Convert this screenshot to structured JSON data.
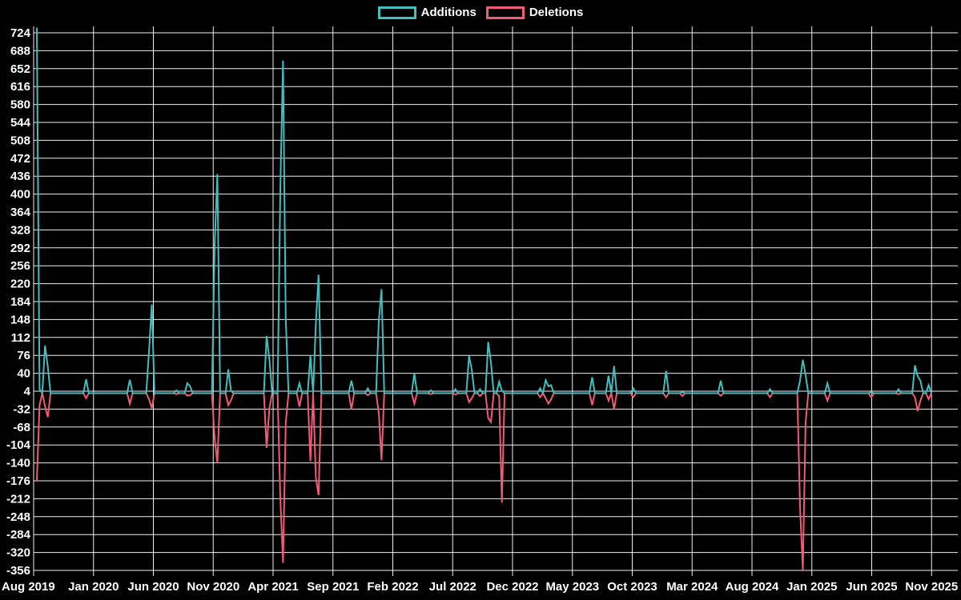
{
  "page": {
    "background": "#000000",
    "text_color": "#ffffff",
    "grid_color": "#f0f0f0"
  },
  "legend": {
    "items": [
      {
        "label": "Additions",
        "color": "#45bdbe"
      },
      {
        "label": "Deletions",
        "color": "#f25b75"
      }
    ]
  },
  "chart_data": {
    "type": "line",
    "title": "",
    "xlabel": "",
    "ylabel": "",
    "legend_position": "top-center",
    "grid": true,
    "x_unit": "week",
    "total_weeks": 328,
    "baseline_value": 0,
    "ylim": [
      -356,
      724
    ],
    "y_ticks": [
      724,
      688,
      652,
      616,
      580,
      544,
      508,
      472,
      436,
      400,
      364,
      328,
      292,
      256,
      220,
      184,
      148,
      112,
      76,
      40,
      4,
      -32,
      -68,
      -104,
      -140,
      -176,
      -212,
      -248,
      -284,
      -320,
      -356
    ],
    "x_tick_labels": [
      "Aug 2019",
      "Jan 2020",
      "Jun 2020",
      "Nov 2020",
      "Apr 2021",
      "Sep 2021",
      "Feb 2022",
      "Jul 2022",
      "Dec 2022",
      "May 2023",
      "Oct 2023",
      "Mar 2024",
      "Aug 2024",
      "Jan 2025",
      "Jun 2025",
      "Nov 2025"
    ],
    "series": [
      {
        "name": "Additions",
        "color": "#45bdbe",
        "default_value": 0,
        "points": [
          [
            0,
            734
          ],
          [
            1,
            8
          ],
          [
            3,
            96
          ],
          [
            4,
            53
          ],
          [
            18,
            28
          ],
          [
            34,
            27
          ],
          [
            41,
            85
          ],
          [
            42,
            178
          ],
          [
            51,
            6
          ],
          [
            55,
            20
          ],
          [
            56,
            14
          ],
          [
            65,
            295
          ],
          [
            66,
            440
          ],
          [
            70,
            48
          ],
          [
            71,
            4
          ],
          [
            84,
            115
          ],
          [
            85,
            68
          ],
          [
            89,
            407
          ],
          [
            90,
            668
          ],
          [
            91,
            150
          ],
          [
            96,
            20
          ],
          [
            100,
            75
          ],
          [
            102,
            140
          ],
          [
            103,
            238
          ],
          [
            115,
            25
          ],
          [
            121,
            10
          ],
          [
            125,
            145
          ],
          [
            126,
            209
          ],
          [
            138,
            40
          ],
          [
            144,
            6
          ],
          [
            153,
            8
          ],
          [
            158,
            75
          ],
          [
            159,
            47
          ],
          [
            162,
            8
          ],
          [
            165,
            103
          ],
          [
            166,
            63
          ],
          [
            169,
            23
          ],
          [
            170,
            5
          ],
          [
            184,
            10
          ],
          [
            186,
            26
          ],
          [
            187,
            14
          ],
          [
            188,
            16
          ],
          [
            203,
            32
          ],
          [
            209,
            35
          ],
          [
            211,
            55
          ],
          [
            218,
            10
          ],
          [
            230,
            45
          ],
          [
            236,
            2
          ],
          [
            250,
            25
          ],
          [
            268,
            8
          ],
          [
            279,
            25
          ],
          [
            280,
            67
          ],
          [
            281,
            37
          ],
          [
            289,
            20
          ],
          [
            305,
            2
          ],
          [
            315,
            8
          ],
          [
            321,
            56
          ],
          [
            322,
            34
          ],
          [
            323,
            25
          ],
          [
            326,
            16
          ]
        ]
      },
      {
        "name": "Deletions",
        "color": "#f25b75",
        "default_value": 0,
        "points": [
          [
            0,
            -176
          ],
          [
            1,
            -24
          ],
          [
            3,
            -26
          ],
          [
            4,
            -48
          ],
          [
            18,
            -10
          ],
          [
            34,
            -21
          ],
          [
            41,
            -12
          ],
          [
            42,
            -30
          ],
          [
            51,
            -2
          ],
          [
            55,
            -5
          ],
          [
            56,
            -4
          ],
          [
            65,
            -90
          ],
          [
            66,
            -140
          ],
          [
            70,
            -24
          ],
          [
            71,
            -14
          ],
          [
            84,
            -110
          ],
          [
            85,
            -30
          ],
          [
            89,
            -210
          ],
          [
            90,
            -341
          ],
          [
            91,
            -60
          ],
          [
            96,
            -27
          ],
          [
            100,
            -137
          ],
          [
            102,
            -170
          ],
          [
            103,
            -205
          ],
          [
            115,
            -32
          ],
          [
            121,
            -4
          ],
          [
            125,
            -40
          ],
          [
            126,
            -135
          ],
          [
            138,
            -21
          ],
          [
            144,
            -2
          ],
          [
            153,
            -3
          ],
          [
            158,
            -18
          ],
          [
            159,
            -10
          ],
          [
            162,
            -6
          ],
          [
            165,
            -50
          ],
          [
            166,
            -58
          ],
          [
            169,
            -6
          ],
          [
            170,
            -220
          ],
          [
            184,
            -8
          ],
          [
            186,
            -10
          ],
          [
            187,
            -21
          ],
          [
            188,
            -12
          ],
          [
            203,
            -24
          ],
          [
            209,
            -15
          ],
          [
            211,
            -32
          ],
          [
            218,
            -8
          ],
          [
            230,
            -8
          ],
          [
            236,
            -6
          ],
          [
            250,
            -5
          ],
          [
            268,
            -8
          ],
          [
            279,
            -228
          ],
          [
            280,
            -356
          ],
          [
            281,
            -60
          ],
          [
            289,
            -15
          ],
          [
            305,
            -8
          ],
          [
            315,
            -2
          ],
          [
            321,
            -8
          ],
          [
            322,
            -36
          ],
          [
            323,
            -15
          ],
          [
            326,
            -12
          ]
        ]
      }
    ]
  }
}
